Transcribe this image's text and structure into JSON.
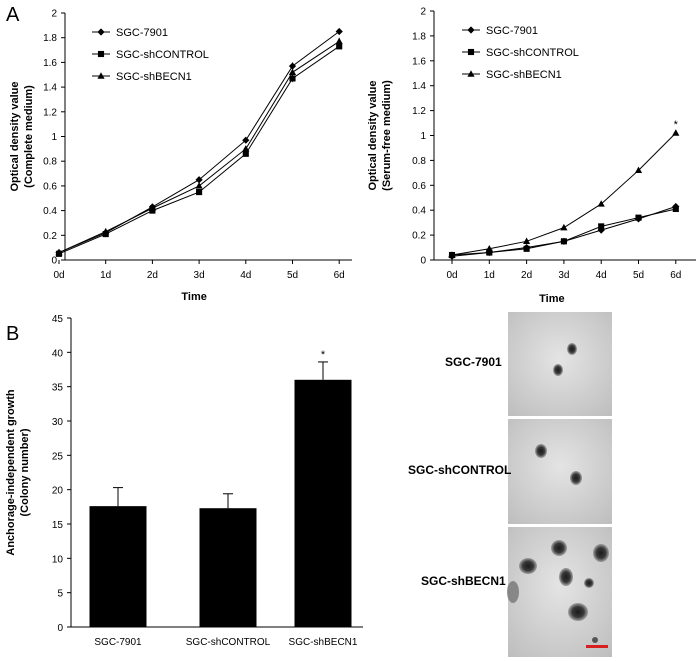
{
  "figure": {
    "panel_a_letter": "A",
    "panel_b_letter": "B"
  },
  "chart_data": [
    {
      "id": "chartA1",
      "type": "line",
      "title": "",
      "xlabel": "Time",
      "ylabel_line1": "Optical density value",
      "ylabel_line2": "(Complete medium)",
      "categories": [
        "0d",
        "1d",
        "2d",
        "3d",
        "4d",
        "5d",
        "6d"
      ],
      "ylim": [
        0,
        2
      ],
      "yticks": [
        "0",
        "0.2",
        "0.4",
        "0.6",
        "0.8",
        "1",
        "1.2",
        "1.4",
        "1.6",
        "1.8",
        "2"
      ],
      "grid": false,
      "legend_position": "top-left",
      "series": [
        {
          "name": "SGC-7901",
          "marker": "diamond",
          "values": [
            0.06,
            0.22,
            0.43,
            0.65,
            0.97,
            1.57,
            1.85
          ],
          "errors": [
            0.01,
            0.01,
            0.01,
            0.02,
            0.02,
            0.03,
            0.02
          ]
        },
        {
          "name": "SGC-shCONTROL",
          "marker": "square",
          "values": [
            0.05,
            0.21,
            0.4,
            0.55,
            0.86,
            1.47,
            1.73
          ],
          "errors": [
            0.01,
            0.01,
            0.01,
            0.02,
            0.02,
            0.03,
            0.02
          ]
        },
        {
          "name": "SGC-shBECN1",
          "marker": "triangle",
          "values": [
            0.06,
            0.23,
            0.42,
            0.6,
            0.9,
            1.52,
            1.77
          ],
          "errors": [
            0.01,
            0.01,
            0.01,
            0.02,
            0.02,
            0.03,
            0.03
          ]
        }
      ],
      "annotations": []
    },
    {
      "id": "chartA2",
      "type": "line",
      "title": "",
      "xlabel": "Time",
      "ylabel_line1": "Optical density value",
      "ylabel_line2": "(Serum-free medium)",
      "categories": [
        "0d",
        "1d",
        "2d",
        "3d",
        "4d",
        "5d",
        "6d"
      ],
      "ylim": [
        0,
        2
      ],
      "yticks": [
        "0",
        "0.2",
        "0.4",
        "0.6",
        "0.8",
        "1",
        "1.2",
        "1.4",
        "1.6",
        "1.8",
        "2"
      ],
      "grid": false,
      "legend_position": "top-left",
      "series": [
        {
          "name": "SGC-7901",
          "marker": "diamond",
          "values": [
            0.03,
            0.06,
            0.1,
            0.15,
            0.24,
            0.33,
            0.43
          ],
          "errors": [
            0.005,
            0.005,
            0.01,
            0.01,
            0.01,
            0.01,
            0.01
          ]
        },
        {
          "name": "SGC-shCONTROL",
          "marker": "square",
          "values": [
            0.04,
            0.06,
            0.09,
            0.15,
            0.27,
            0.34,
            0.41
          ],
          "errors": [
            0.005,
            0.005,
            0.01,
            0.01,
            0.01,
            0.01,
            0.01
          ]
        },
        {
          "name": "SGC-shBECN1",
          "marker": "triangle",
          "values": [
            0.04,
            0.09,
            0.15,
            0.26,
            0.45,
            0.72,
            1.02
          ],
          "errors": [
            0.005,
            0.005,
            0.01,
            0.01,
            0.01,
            0.02,
            0.02
          ]
        }
      ],
      "annotations": [
        {
          "category": "6d",
          "value": 1.02,
          "text": "*"
        }
      ]
    },
    {
      "id": "chartB",
      "type": "bar",
      "title": "",
      "xlabel": "",
      "ylabel_line1": "Anchorage-independent growth",
      "ylabel_line2": "(Colony number)",
      "categories": [
        "SGC-7901",
        "SGC-shCONTROL",
        "SGC-shBECN1"
      ],
      "values": [
        17.6,
        17.3,
        36.0
      ],
      "errors": [
        2.7,
        2.1,
        2.6
      ],
      "ylim": [
        0,
        45
      ],
      "yticks": [
        "0",
        "5",
        "10",
        "15",
        "20",
        "25",
        "30",
        "35",
        "40",
        "45"
      ],
      "grid": false,
      "bar_color": "#000000",
      "annotations": [
        {
          "category": "SGC-shBECN1",
          "text": "*"
        }
      ]
    }
  ],
  "photos": {
    "labels": [
      "SGC-7901",
      "SGC-shCONTROL",
      "SGC-shBECN1"
    ]
  }
}
